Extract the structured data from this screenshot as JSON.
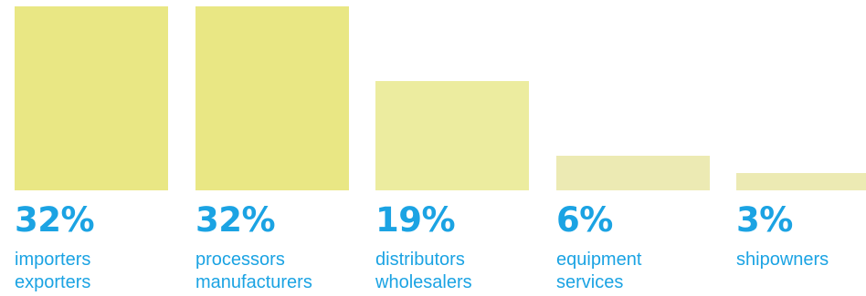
{
  "colors": {
    "bar": "#e9e784",
    "bar_light": "#ecec9f",
    "bar_lighter": "#eceab3",
    "text": "#1ba3e3"
  },
  "chart_data": {
    "type": "bar",
    "categories": [
      [
        "importers",
        "exporters"
      ],
      [
        "processors",
        "manufacturers"
      ],
      [
        "distributors",
        "wholesalers"
      ],
      [
        "equipment",
        "services"
      ],
      [
        "shipowners"
      ]
    ],
    "values": [
      32,
      32,
      19,
      6,
      3
    ],
    "value_labels": [
      "32%",
      "32%",
      "19%",
      "6%",
      "3%"
    ],
    "ylim": [
      0,
      32
    ],
    "grid": false,
    "legend": "none"
  }
}
